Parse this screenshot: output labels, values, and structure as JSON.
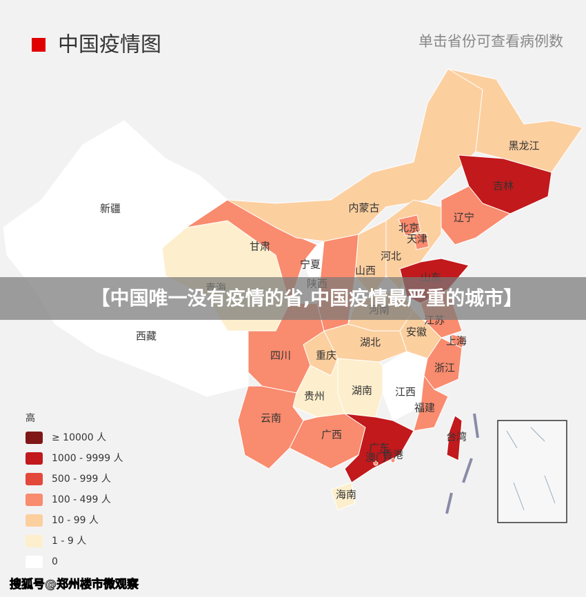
{
  "header": {
    "title": "中国疫情图",
    "hint": "单击省份可查看病例数"
  },
  "legend": {
    "title": "高",
    "items": [
      {
        "label": "≥ 10000 人",
        "color": "#7f1716"
      },
      {
        "label": "1000 - 9999 人",
        "color": "#c1191c"
      },
      {
        "label": "500 - 999 人",
        "color": "#e3483b"
      },
      {
        "label": "100 - 499 人",
        "color": "#f98b6e"
      },
      {
        "label": "10 - 99 人",
        "color": "#fccf9f"
      },
      {
        "label": "1 - 9 人",
        "color": "#fdefcd"
      },
      {
        "label": "0",
        "color": "#ffffff"
      }
    ]
  },
  "provinces": [
    {
      "name": "新疆",
      "level": 6
    },
    {
      "name": "西藏",
      "level": 6
    },
    {
      "name": "青海",
      "level": 5
    },
    {
      "name": "甘肃",
      "level": 3
    },
    {
      "name": "内蒙古",
      "level": 4
    },
    {
      "name": "黑龙江",
      "level": 4
    },
    {
      "name": "吉林",
      "level": 1
    },
    {
      "name": "辽宁",
      "level": 3
    },
    {
      "name": "宁夏",
      "level": 6
    },
    {
      "name": "陕西",
      "level": 3
    },
    {
      "name": "山西",
      "level": 4
    },
    {
      "name": "河北",
      "level": 4
    },
    {
      "name": "北京",
      "level": 3
    },
    {
      "name": "天津",
      "level": 3
    },
    {
      "name": "山东",
      "level": 1
    },
    {
      "name": "河南",
      "level": 4
    },
    {
      "name": "江苏",
      "level": 3
    },
    {
      "name": "安徽",
      "level": 4
    },
    {
      "name": "上海",
      "level": 3
    },
    {
      "name": "湖北",
      "level": 4
    },
    {
      "name": "重庆",
      "level": 4
    },
    {
      "name": "四川",
      "level": 3
    },
    {
      "name": "浙江",
      "level": 3
    },
    {
      "name": "江西",
      "level": 6
    },
    {
      "name": "湖南",
      "level": 5
    },
    {
      "name": "贵州",
      "level": 5
    },
    {
      "name": "福建",
      "level": 3
    },
    {
      "name": "云南",
      "level": 3
    },
    {
      "name": "广西",
      "level": 3
    },
    {
      "name": "广东",
      "level": 1
    },
    {
      "name": "海南",
      "level": 5
    },
    {
      "name": "台湾",
      "level": 1
    },
    {
      "name": "香港",
      "level": 3
    },
    {
      "name": "澳门",
      "level": 3
    }
  ],
  "banner": "【中国唯一没有疫情的省,中国疫情最严重的城市】",
  "watermark": "搜狐号@郑州楼市微观察"
}
